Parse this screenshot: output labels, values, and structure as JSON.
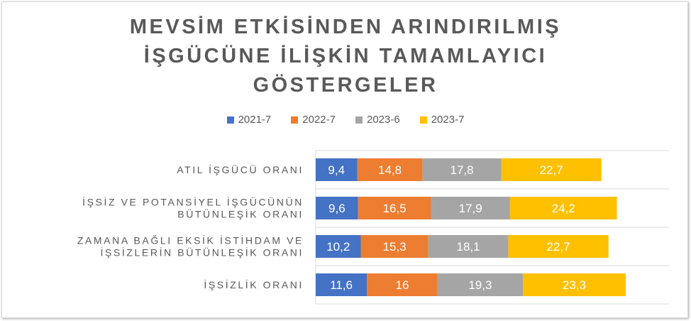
{
  "chart_data": {
    "type": "bar",
    "orientation": "horizontal",
    "stacked": true,
    "title": "MEVSİM ETKİSİNDEN ARINDIRILMIŞ İŞGÜCÜNE İLİŞKİN TAMAMLAYICI GÖSTERGELER",
    "title_lines": [
      "MEVSİM ETKİSİNDEN ARINDIRILMIŞ",
      "İŞGÜCÜNE İLİŞKİN TAMAMLAYICI",
      "GÖSTERGELER"
    ],
    "legend_position": "top",
    "grid": "vertical",
    "categories": [
      [
        "ATIL İŞGÜCÜ ORANI"
      ],
      [
        "İŞSİZ VE POTANSİYEL İŞGÜCÜNÜN",
        "BÜTÜNLEŞİK ORANI"
      ],
      [
        "ZAMANA BAĞLI EKSİK İSTİHDAM VE",
        "İŞSİZLERİN BÜTÜNLEŞİK ORANI"
      ],
      [
        "İŞSİZLİK ORANI"
      ]
    ],
    "series": [
      {
        "name": "2021-7",
        "color": "#4472C4",
        "values": [
          9.4,
          9.6,
          10.2,
          11.6
        ],
        "labels": [
          "9,4",
          "9,6",
          "10,2",
          "11,6"
        ]
      },
      {
        "name": "2022-7",
        "color": "#ED7D31",
        "values": [
          14.8,
          16.5,
          15.3,
          16
        ],
        "labels": [
          "14,8",
          "16,5",
          "15,3",
          "16"
        ]
      },
      {
        "name": "2023-6",
        "color": "#A5A5A5",
        "values": [
          17.8,
          17.9,
          18.1,
          19.3
        ],
        "labels": [
          "17,8",
          "17,9",
          "18,1",
          "19,3"
        ]
      },
      {
        "name": "2023-7",
        "color": "#FFC000",
        "values": [
          22.7,
          24.2,
          22.7,
          23.3
        ],
        "labels": [
          "22,7",
          "24,2",
          "22,7",
          "23,3"
        ]
      }
    ],
    "xlim": [
      0,
      80
    ]
  }
}
